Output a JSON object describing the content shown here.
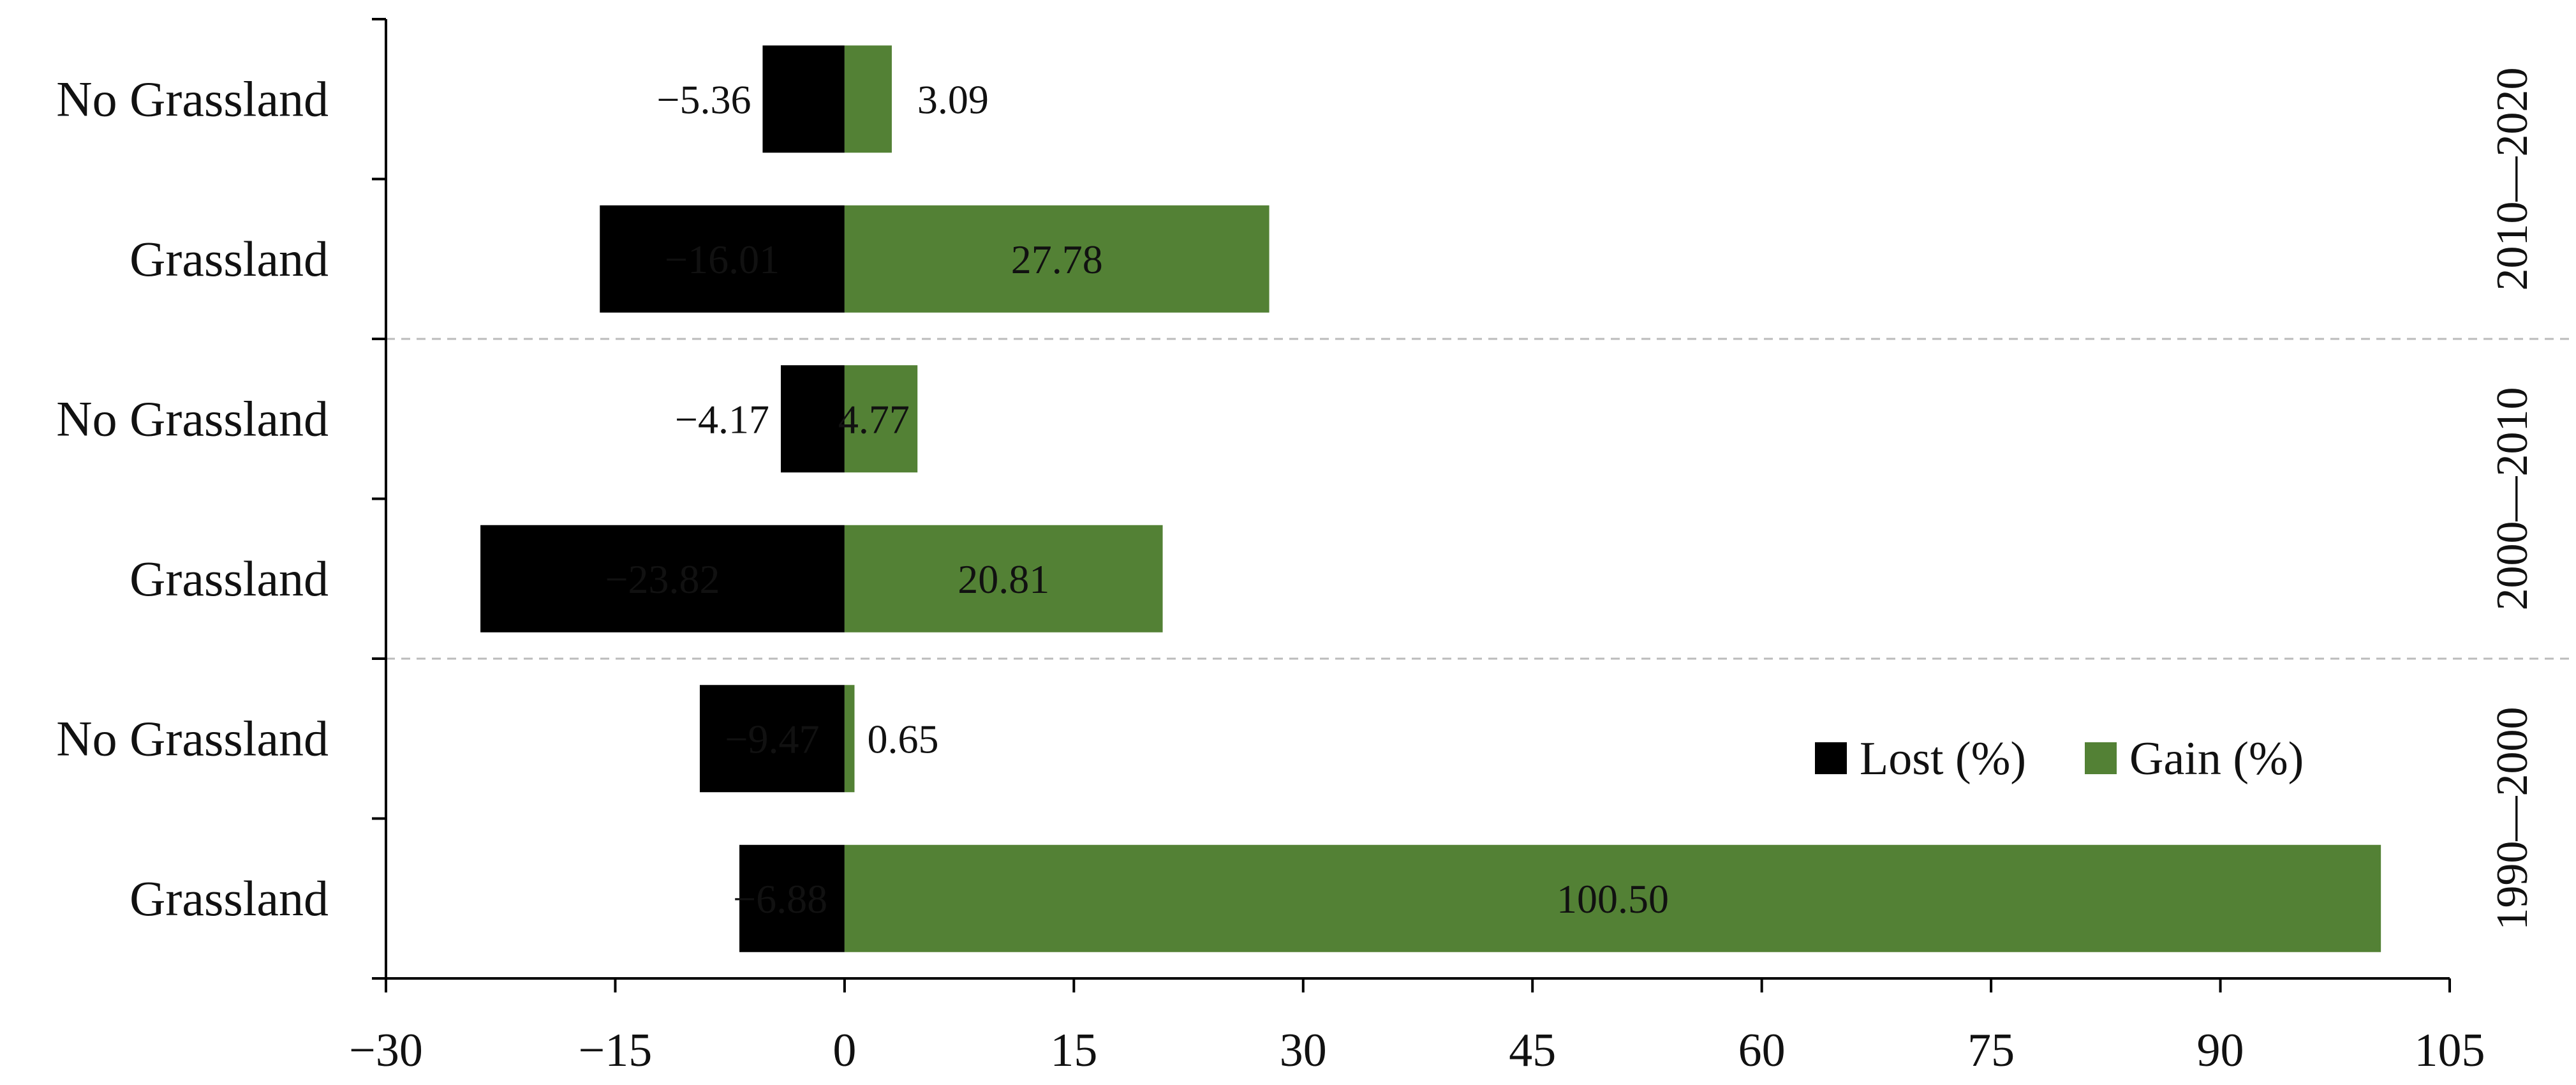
{
  "chart_data": {
    "type": "bar",
    "subtype": "diverging-horizontal-stacked",
    "title": "",
    "xlabel": "",
    "ylabel": "",
    "xlim": [
      -30,
      105
    ],
    "xticks": [
      "−30",
      "−15",
      "0",
      "15",
      "30",
      "45",
      "60",
      "75",
      "90",
      "105"
    ],
    "xtick_values": [
      -30,
      -15,
      0,
      15,
      30,
      45,
      60,
      75,
      90,
      105
    ],
    "grid": false,
    "legend_position": "lower-right",
    "groups": [
      {
        "label": "2010—2020",
        "rows": [
          {
            "category": "No Grassland",
            "lost": -5.36,
            "gain": 3.09,
            "lost_label": "−5.36",
            "gain_label": "3.09"
          },
          {
            "category": "Grassland",
            "lost": -16.01,
            "gain": 27.78,
            "lost_label": "−16.01",
            "gain_label": "27.78"
          }
        ]
      },
      {
        "label": "2000—2010",
        "rows": [
          {
            "category": "No Grassland",
            "lost": -4.17,
            "gain": 4.77,
            "lost_label": "−4.17",
            "gain_label": "4.77"
          },
          {
            "category": "Grassland",
            "lost": -23.82,
            "gain": 20.81,
            "lost_label": "−23.82",
            "gain_label": "20.81"
          }
        ]
      },
      {
        "label": "1990—2000",
        "rows": [
          {
            "category": "No Grassland",
            "lost": -9.47,
            "gain": 0.65,
            "lost_label": "−9.47",
            "gain_label": "0.65"
          },
          {
            "category": "Grassland",
            "lost": -6.88,
            "gain": 100.5,
            "lost_label": "−6.88",
            "gain_label": "100.50"
          }
        ]
      }
    ],
    "series": [
      {
        "name": "Lost (%)",
        "key": "lost",
        "color": "#000000"
      },
      {
        "name": "Gain (%)",
        "key": "gain",
        "color": "#538135"
      }
    ],
    "label_colors": {
      "on_bar": "#ffffff",
      "outside": "#111111"
    }
  }
}
